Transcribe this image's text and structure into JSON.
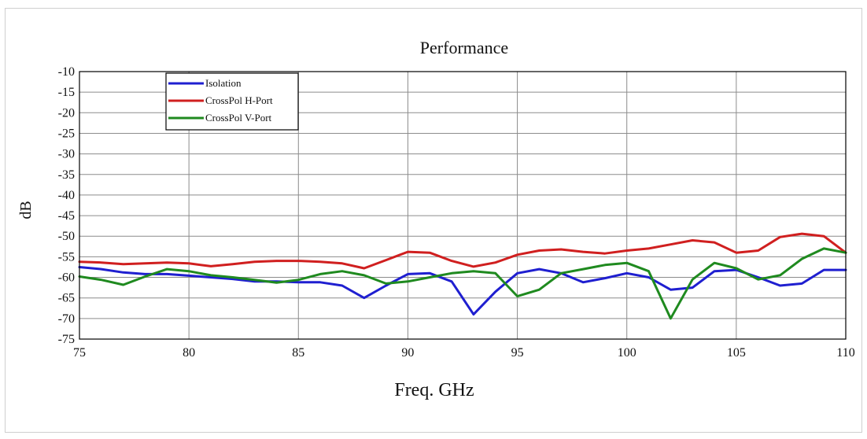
{
  "chart_data": {
    "type": "line",
    "title": "Performance",
    "xlabel": "Freq. GHz",
    "ylabel": "dB",
    "xlim": [
      75,
      110
    ],
    "ylim": [
      -75,
      -10
    ],
    "xticks": [
      75,
      80,
      85,
      90,
      95,
      100,
      105,
      110
    ],
    "yticks": [
      -10,
      -15,
      -20,
      -25,
      -30,
      -35,
      -40,
      -45,
      -50,
      -55,
      -60,
      -65,
      -70,
      -75
    ],
    "grid": true,
    "legend_position": "top-left",
    "series": [
      {
        "name": "Isolation",
        "color": "#1f1fd0",
        "x": [
          75,
          76,
          77,
          78,
          79,
          80,
          81,
          82,
          83,
          84,
          85,
          86,
          87,
          88,
          89,
          90,
          91,
          92,
          93,
          94,
          95,
          96,
          97,
          98,
          99,
          100,
          101,
          102,
          103,
          104,
          105,
          106,
          107,
          108,
          109,
          110
        ],
        "values": [
          -57.5,
          -58,
          -58.8,
          -59.2,
          -59.2,
          -59.6,
          -60,
          -60.4,
          -61,
          -61,
          -61.2,
          -61.2,
          -62,
          -65,
          -62,
          -59.2,
          -59,
          -61,
          -69,
          -63.5,
          -59,
          -58,
          -59,
          -61.2,
          -60.2,
          -59,
          -60,
          -63,
          -62.5,
          -58.5,
          -58.2,
          -60,
          -62,
          -61.5,
          -58.2,
          -58.2
        ]
      },
      {
        "name": "CrossPol H-Port",
        "color": "#d01f1f",
        "x": [
          75,
          76,
          77,
          78,
          79,
          80,
          81,
          82,
          83,
          84,
          85,
          86,
          87,
          88,
          89,
          90,
          91,
          92,
          93,
          94,
          95,
          96,
          97,
          98,
          99,
          100,
          101,
          102,
          103,
          104,
          105,
          106,
          107,
          108,
          109,
          110
        ],
        "values": [
          -56.2,
          -56.4,
          -56.8,
          -56.6,
          -56.4,
          -56.6,
          -57.3,
          -56.8,
          -56.2,
          -56,
          -56,
          -56.2,
          -56.6,
          -57.8,
          -55.8,
          -53.8,
          -54,
          -56,
          -57.4,
          -56.4,
          -54.5,
          -53.5,
          -53.2,
          -53.8,
          -54.2,
          -53.5,
          -53,
          -52,
          -51,
          -51.5,
          -54,
          -53.5,
          -50.2,
          -49.4,
          -50,
          -54
        ]
      },
      {
        "name": "CrossPol V-Port",
        "color": "#1f8a1f",
        "x": [
          75,
          76,
          77,
          78,
          79,
          80,
          81,
          82,
          83,
          84,
          85,
          86,
          87,
          88,
          89,
          90,
          91,
          92,
          93,
          94,
          95,
          96,
          97,
          98,
          99,
          100,
          101,
          102,
          103,
          104,
          105,
          106,
          107,
          108,
          109,
          110
        ],
        "values": [
          -59.8,
          -60.6,
          -61.8,
          -59.8,
          -58,
          -58.5,
          -59.5,
          -60,
          -60.6,
          -61.3,
          -60.6,
          -59.2,
          -58.5,
          -59.5,
          -61.5,
          -61,
          -60,
          -59,
          -58.5,
          -59,
          -64.6,
          -63,
          -59,
          -58,
          -57,
          -56.5,
          -58.5,
          -70,
          -60.5,
          -56.5,
          -57.8,
          -60.5,
          -59.5,
          -55.5,
          -53,
          -54
        ]
      }
    ]
  }
}
